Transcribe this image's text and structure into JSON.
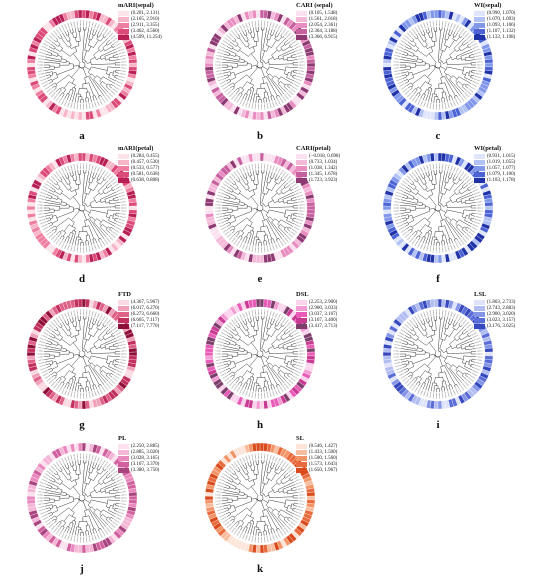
{
  "panels": [
    {
      "letter": "a",
      "title": "mARI(sepal)",
      "color_ramp": [
        "#fde3ea",
        "#f7b5c8",
        "#ef7fa0",
        "#dc4a78",
        "#b81f55"
      ],
      "ranges": [
        "(0.201,  2.131)",
        "(2.165,  2.910)",
        "(2.911,  3.355)",
        "(3.462,  4.560)",
        "(4.599,  11.254)"
      ]
    },
    {
      "letter": "b",
      "title": "CARI (sepal)",
      "color_ramp": [
        "#fbe1ef",
        "#f4b8d8",
        "#e98dc0",
        "#c7609f",
        "#8e3a72"
      ],
      "ranges": [
        "(0.105,  1.548)",
        "(1.561,  2.018)",
        "(2.054,  2.361)",
        "(2.364,  3.188)",
        "(3.366,  6.915)"
      ]
    },
    {
      "letter": "c",
      "title": "WI(sepal)",
      "color_ramp": [
        "#dfe6fb",
        "#b3c2f4",
        "#8197ea",
        "#4c63d6",
        "#1f32a8"
      ],
      "ranges": [
        "(0.990,  1.070)",
        "(1.070,  1.093)",
        "(1.093,  1.106)",
        "(1.107,  1.132)",
        "(1.133,  1.198)"
      ]
    },
    {
      "letter": "d",
      "title": "mARI(petal)",
      "color_ramp": [
        "#fde3ea",
        "#f7b5c8",
        "#ef7fa0",
        "#dc4a78",
        "#b81f55"
      ],
      "ranges": [
        "(0.284,  0.455)",
        "(0.457,  0.530)",
        "(0.533,  0.577)",
        "(0.581,  0.638)",
        "(0.638,  0.808)"
      ]
    },
    {
      "letter": "e",
      "title": "CARI(petal)",
      "color_ramp": [
        "#fbe1ef",
        "#f4b8d8",
        "#e98dc0",
        "#c7609f",
        "#8e3a72"
      ],
      "ranges": [
        "(−0.018,  0.698)",
        "(0.733,  1.034)",
        "(1.038,  1.342)",
        "(1.345,  1.678)",
        "(1.723,  3.923)"
      ]
    },
    {
      "letter": "f",
      "title": "WI(petal)",
      "color_ramp": [
        "#dfe6fb",
        "#b3c2f4",
        "#8197ea",
        "#4c63d6",
        "#1f32a8"
      ],
      "ranges": [
        "(0.931,  1.015)",
        "(1.019,  1.055)",
        "(1.057,  1.077)",
        "(1.079,  1.100)",
        "(1.103,  1.178)"
      ]
    },
    {
      "letter": "g",
      "title": "FTD",
      "color_ramp": [
        "#fbd9e2",
        "#f0a0b8",
        "#de6288",
        "#c2305d",
        "#8e0f38"
      ],
      "ranges": [
        "(4.367,  5.967)",
        "(6.017,  6.270)",
        "(6.273,  6.660)",
        "(6.665,  7.117)",
        "(7.117,  7.770)"
      ]
    },
    {
      "letter": "h",
      "title": "DSL",
      "color_ramp": [
        "#fbd3ec",
        "#f39bd3",
        "#e85bb7",
        "#c93a92",
        "#7c3f6c"
      ],
      "ranges": [
        "(2.253,  2.900)",
        "(2.900,  3.033)",
        "(3.037,  3.167)",
        "(3.167,  3.400)",
        "(3.417,  3.713)"
      ]
    },
    {
      "letter": "i",
      "title": "LSL",
      "color_ramp": [
        "#dee3fa",
        "#b2bdf2",
        "#8494e6",
        "#5a6dd6",
        "#3648bd"
      ],
      "ranges": [
        "(1.803,  2.733)",
        "(2.743,  2.883)",
        "(2.900,  3.020)",
        "(3.023,  3.157)",
        "(3.176,  3.625)"
      ]
    },
    {
      "letter": "j",
      "title": "PL",
      "color_ramp": [
        "#fbe0ee",
        "#f4b6d6",
        "#e989bd",
        "#d1609f",
        "#a8457f"
      ],
      "ranges": [
        "(2.250,  2.885)",
        "(2.885,  3.020)",
        "(3.028,  3.165)",
        "(3.167,  3.370)",
        "(3.380,  3.750)"
      ]
    },
    {
      "letter": "k",
      "title": "SL",
      "color_ramp": [
        "#fde4d8",
        "#f8bd9e",
        "#f29468",
        "#e96a3c",
        "#d94a1c"
      ],
      "ranges": [
        "(0.546,  1.427)",
        "(1.433,  1.500)",
        "(1.500,  1.560)",
        "(1.573,  1.643)",
        "(1.650,  1.967)"
      ]
    }
  ]
}
